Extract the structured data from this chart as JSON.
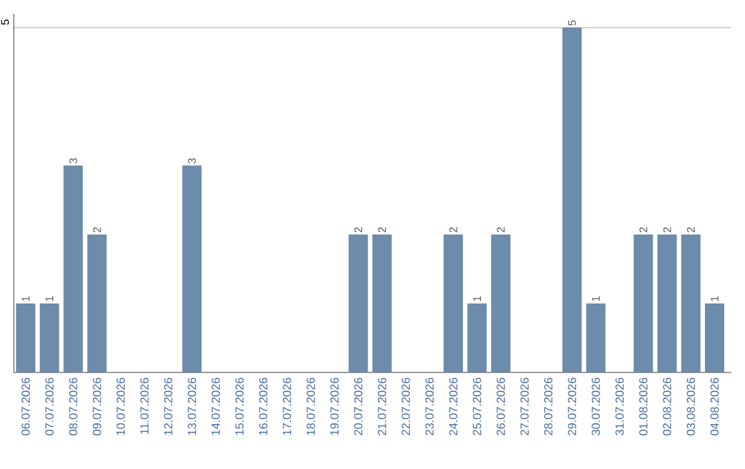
{
  "chart_data": {
    "type": "bar",
    "categories": [
      "06.07.2026",
      "07.07.2026",
      "08.07.2026",
      "09.07.2026",
      "10.07.2026",
      "11.07.2026",
      "12.07.2026",
      "13.07.2026",
      "14.07.2026",
      "15.07.2026",
      "16.07.2026",
      "17.07.2026",
      "18.07.2026",
      "19.07.2026",
      "20.07.2026",
      "21.07.2026",
      "22.07.2026",
      "23.07.2026",
      "24.07.2026",
      "25.07.2026",
      "26.07.2026",
      "27.07.2026",
      "28.07.2026",
      "29.07.2026",
      "30.07.2026",
      "31.07.2026",
      "01.08.2026",
      "02.08.2026",
      "03.08.2026",
      "04.08.2026"
    ],
    "values": [
      1,
      1,
      3,
      2,
      0,
      0,
      0,
      3,
      0,
      0,
      0,
      0,
      0,
      0,
      2,
      2,
      0,
      0,
      2,
      1,
      2,
      0,
      0,
      5,
      1,
      0,
      2,
      2,
      2,
      1
    ],
    "value_labels": [
      "1",
      "1",
      "3",
      "2",
      null,
      null,
      null,
      "3",
      null,
      null,
      null,
      null,
      null,
      null,
      "2",
      "2",
      null,
      null,
      "2",
      "1",
      "2",
      null,
      null,
      "5",
      "1",
      null,
      "2",
      "2",
      "2",
      "1"
    ],
    "color": "#6d8cab",
    "ylim": [
      0,
      5.2
    ],
    "yticks": [
      5
    ],
    "grid": "y"
  }
}
